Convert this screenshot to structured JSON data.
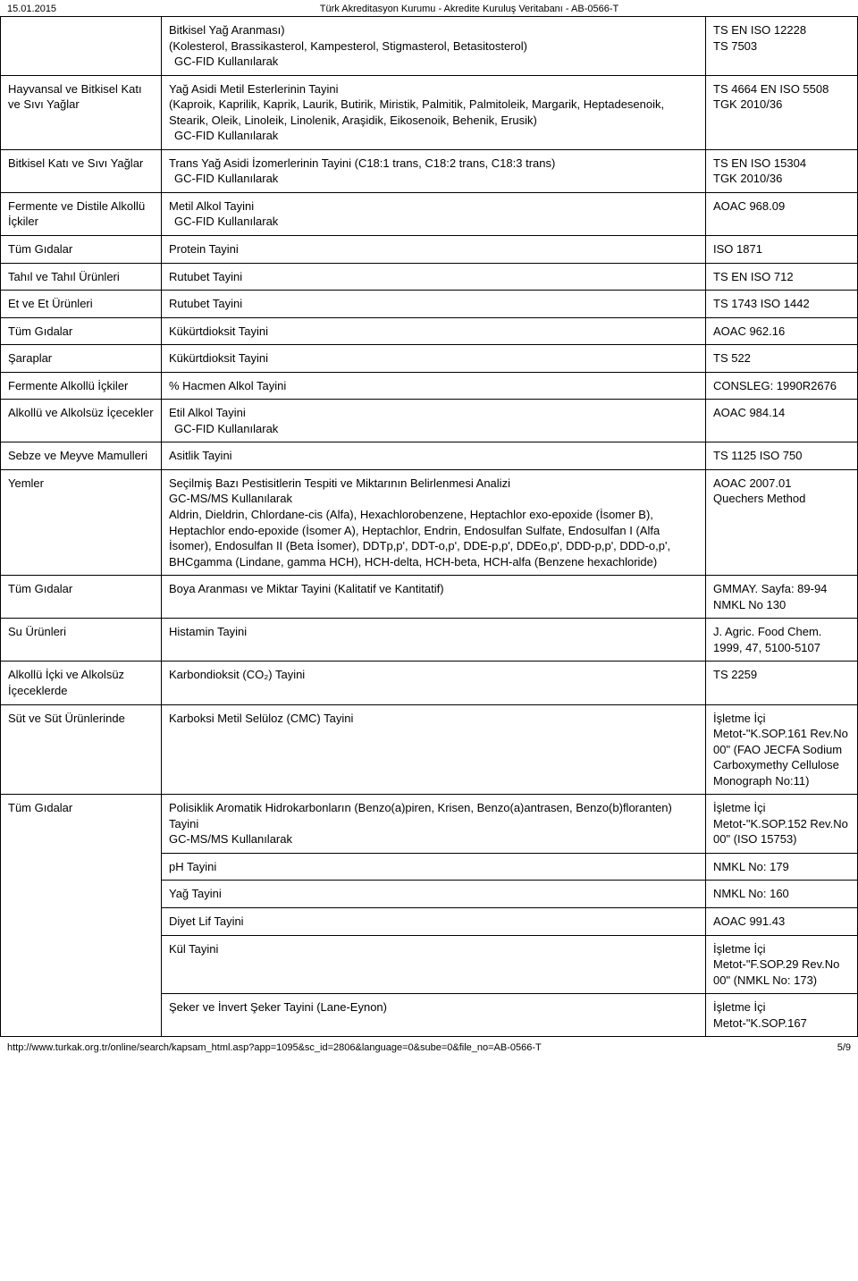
{
  "header": {
    "date": "15.01.2015",
    "title": "Türk Akreditasyon Kurumu - Akredite Kuruluş Veritabanı - AB-0566-T"
  },
  "rows": [
    {
      "c1": "",
      "c2_main": "Bitkisel Yağ Aranması)\n(Kolesterol, Brassikasterol, Kampesterol, Stigmasterol, Betasitosterol)",
      "c2_sub": "GC-FID Kullanılarak",
      "c3": "TS EN ISO 12228\nTS 7503"
    },
    {
      "c1": "Hayvansal ve Bitkisel Katı ve Sıvı Yağlar",
      "c2_main": "Yağ Asidi Metil Esterlerinin Tayini\n(Kaproik, Kaprilik, Kaprik, Laurik, Butirik, Miristik, Palmitik, Palmitoleik, Margarik, Heptadesenoik, Stearik, Oleik, Linoleik, Linolenik, Araşidik, Eikosenoik, Behenik, Erusik)",
      "c2_sub": "GC-FID Kullanılarak",
      "c3": "TS 4664 EN ISO 5508\nTGK 2010/36"
    },
    {
      "c1": "Bitkisel Katı ve Sıvı Yağlar",
      "c2_main": "Trans Yağ Asidi İzomerlerinin Tayini (C18:1 trans, C18:2 trans, C18:3 trans)",
      "c2_sub": "GC-FID Kullanılarak",
      "c3": "TS EN ISO 15304\nTGK 2010/36"
    },
    {
      "c1": "Fermente ve Distile Alkollü İçkiler",
      "c2_main": "Metil Alkol Tayini",
      "c2_sub": "GC-FID Kullanılarak",
      "c3": "AOAC 968.09"
    },
    {
      "c1": "Tüm Gıdalar",
      "c2_main": "Protein Tayini",
      "c2_sub": "",
      "c3": "ISO 1871"
    },
    {
      "c1": "Tahıl ve Tahıl Ürünleri",
      "c2_main": "Rutubet Tayini",
      "c2_sub": "",
      "c3": "TS EN ISO 712"
    },
    {
      "c1": "Et ve Et Ürünleri",
      "c2_main": "Rutubet Tayini",
      "c2_sub": "",
      "c3": "TS 1743 ISO 1442"
    },
    {
      "c1": "Tüm Gıdalar",
      "c2_main": "Kükürtdioksit Tayini",
      "c2_sub": "",
      "c3": "AOAC 962.16"
    },
    {
      "c1": "Şaraplar",
      "c2_main": "Kükürtdioksit Tayini",
      "c2_sub": "",
      "c3": "TS 522"
    },
    {
      "c1": "Fermente Alkollü İçkiler",
      "c2_main": "% Hacmen Alkol Tayini",
      "c2_sub": "",
      "c3": "CONSLEG: 1990R2676"
    },
    {
      "c1": "Alkollü ve Alkolsüz İçecekler",
      "c2_main": "Etil Alkol Tayini",
      "c2_sub": "GC-FID Kullanılarak",
      "c3": "AOAC 984.14"
    },
    {
      "c1": "Sebze ve Meyve Mamulleri",
      "c2_main": "Asitlik Tayini",
      "c2_sub": "",
      "c3": "TS 1125 ISO 750"
    },
    {
      "c1": "Yemler",
      "c2_main": "Seçilmiş Bazı Pestisitlerin Tespiti ve Miktarının Belirlenmesi Analizi\nGC-MS/MS Kullanılarak\nAldrin, Dieldrin, Chlordane-cis (Alfa), Hexachlorobenzene, Heptachlor exo-epoxide (İsomer B), Heptachlor endo-epoxide (İsomer A), Heptachlor, Endrin, Endosulfan Sulfate, Endosulfan I (Alfa İsomer), Endosulfan II (Beta İsomer), DDTp,p', DDT-o,p', DDE-p,p', DDEo,p', DDD-p,p', DDD-o,p', BHCgamma (Lindane, gamma HCH), HCH-delta, HCH-beta, HCH-alfa (Benzene hexachloride)",
      "c2_sub": "",
      "c3": "AOAC 2007.01\nQuechers Method"
    },
    {
      "c1": "Tüm Gıdalar",
      "c2_main": "Boya Aranması ve Miktar Tayini (Kalitatif ve Kantitatif)",
      "c2_sub": "",
      "c3": "GMMAY. Sayfa: 89-94\nNMKL No 130"
    },
    {
      "c1": "Su Ürünleri",
      "c2_main": "Histamin Tayini",
      "c2_sub": "",
      "c3": "J. Agric. Food Chem. 1999, 47, 5100-5107"
    },
    {
      "c1": "Alkollü İçki ve Alkolsüz İçeceklerde",
      "c2_main": "Karbondioksit (CO₂) Tayini",
      "c2_sub": "",
      "c3": "TS 2259"
    },
    {
      "c1": "Süt ve Süt Ürünlerinde",
      "c2_main": "Karboksi Metil Selüloz (CMC) Tayini",
      "c2_sub": "",
      "c3": "İşletme İçi\nMetot-\"K.SOP.161 Rev.No 00\" (FAO JECFA Sodium Carboxymethy Cellulose Monograph No:11)"
    },
    {
      "c1": "Tüm Gıdalar",
      "c2_main": "Polisiklik Aromatik Hidrokarbonların (Benzo(a)piren, Krisen, Benzo(a)antrasen, Benzo(b)floranten) Tayini\nGC-MS/MS Kullanılarak",
      "c2_sub": "",
      "c3": "İşletme İçi\nMetot-\"K.SOP.152 Rev.No 00\" (ISO 15753)",
      "rowspan1": 6
    },
    {
      "c1": "",
      "c2_main": "pH Tayini",
      "c2_sub": "",
      "c3": "NMKL No: 179",
      "skip1": true
    },
    {
      "c1": "",
      "c2_main": "Yağ Tayini",
      "c2_sub": "",
      "c3": "NMKL No: 160",
      "skip1": true
    },
    {
      "c1": "",
      "c2_main": "Diyet Lif Tayini",
      "c2_sub": "",
      "c3": "AOAC 991.43",
      "skip1": true
    },
    {
      "c1": "",
      "c2_main": "Kül Tayini",
      "c2_sub": "",
      "c3": "İşletme İçi\nMetot-\"F.SOP.29 Rev.No 00\" (NMKL No: 173)",
      "skip1": true
    },
    {
      "c1": "",
      "c2_main": "Şeker ve İnvert Şeker Tayini (Lane-Eynon)",
      "c2_sub": "",
      "c3": "İşletme İçi\nMetot-\"K.SOP.167",
      "skip1": true
    }
  ],
  "footer": {
    "url": "http://www.turkak.org.tr/online/search/kapsam_html.asp?app=1095&sc_id=2806&language=0&sube=0&file_no=AB-0566-T",
    "page": "5/9"
  }
}
